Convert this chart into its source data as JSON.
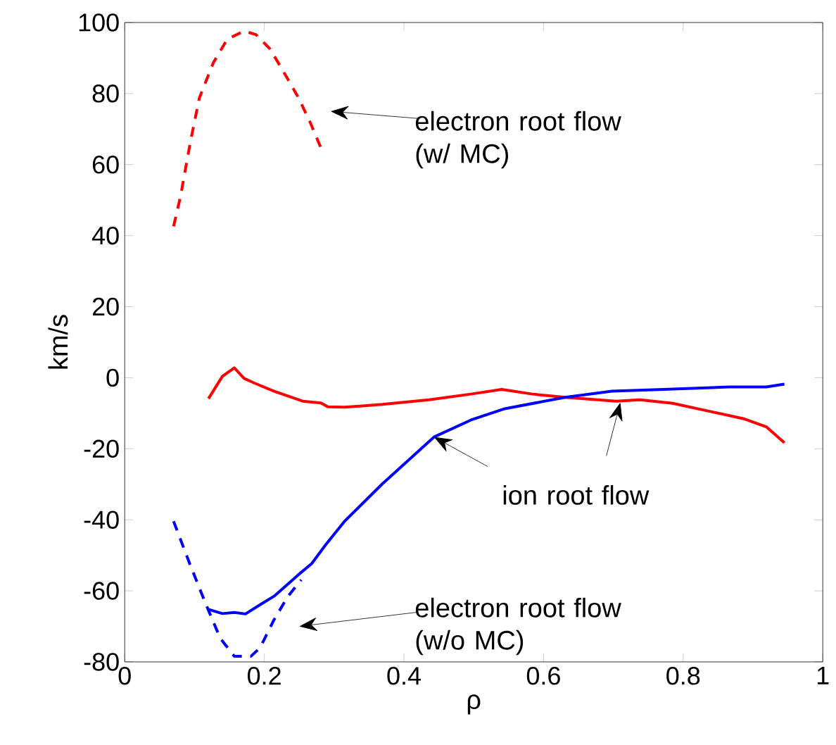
{
  "chart_data": {
    "type": "line",
    "xlabel": "ρ",
    "ylabel": "km/s",
    "xlim": [
      0,
      1
    ],
    "ylim": [
      -80,
      100
    ],
    "xticks": [
      0,
      0.2,
      0.4,
      0.6,
      0.8,
      1
    ],
    "yticks": [
      -80,
      -60,
      -40,
      -20,
      0,
      20,
      40,
      60,
      80,
      100
    ],
    "grid": false,
    "marker": "none",
    "series": [
      {
        "color": "#ff0000",
        "line_style": "dashed",
        "x": [
          0.07,
          0.08,
          0.094,
          0.107,
          0.127,
          0.147,
          0.171,
          0.188,
          0.208,
          0.228,
          0.249,
          0.265,
          0.282
        ],
        "values": [
          42.6,
          51.1,
          66.3,
          78.8,
          88.7,
          95.3,
          97.6,
          96.6,
          92.6,
          86.0,
          78.8,
          72.2,
          64.3
        ]
      },
      {
        "color": "#ff0000",
        "line_style": "solid",
        "x": [
          0.12,
          0.14,
          0.157,
          0.171,
          0.187,
          0.214,
          0.255,
          0.281,
          0.291,
          0.315,
          0.369,
          0.436,
          0.496,
          0.54,
          0.584,
          0.631,
          0.704,
          0.738,
          0.785,
          0.839,
          0.886,
          0.919,
          0.945
        ],
        "values": [
          -5.9,
          0.4,
          2.8,
          -0.2,
          -1.6,
          -3.8,
          -6.6,
          -7.1,
          -8.2,
          -8.3,
          -7.5,
          -6.2,
          -4.6,
          -3.3,
          -4.6,
          -5.5,
          -6.6,
          -6.2,
          -7.2,
          -9.5,
          -11.5,
          -13.8,
          -18.3
        ]
      },
      {
        "color": "#0000ff",
        "line_style": "solid",
        "x": [
          0.12,
          0.14,
          0.157,
          0.173,
          0.194,
          0.214,
          0.248,
          0.268,
          0.288,
          0.315,
          0.369,
          0.443,
          0.496,
          0.543,
          0.631,
          0.698,
          0.772,
          0.866,
          0.919,
          0.945
        ],
        "values": [
          -65.2,
          -66.4,
          -66.1,
          -66.5,
          -63.9,
          -61.5,
          -55.6,
          -52.3,
          -47.0,
          -40.4,
          -29.9,
          -16.7,
          -11.9,
          -8.8,
          -5.5,
          -3.8,
          -3.3,
          -2.6,
          -2.6,
          -1.8
        ]
      },
      {
        "color": "#0000ff",
        "line_style": "dashed",
        "x": [
          0.07,
          0.093,
          0.117,
          0.137,
          0.157,
          0.181,
          0.194,
          0.214,
          0.234,
          0.253
        ],
        "values": [
          -40.4,
          -52.3,
          -64.1,
          -73.4,
          -78.4,
          -78.4,
          -76.0,
          -68.1,
          -61.5,
          -56.9
        ]
      }
    ],
    "annotations": [
      "electron root flow (w/ MC)",
      {
        "text": "ion root flow",
        "x": 0.443,
        "y": -16.7
      },
      "electron root flow (w/o MC)"
    ]
  }
}
